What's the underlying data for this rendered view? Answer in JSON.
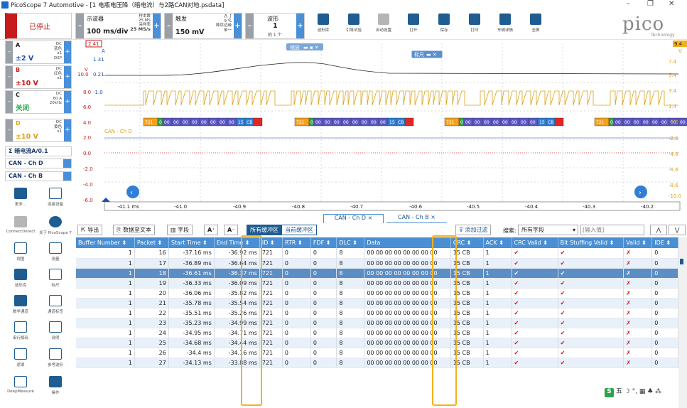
{
  "window": {
    "title": "PicoScope 7 Automotive - [1 电瓶电压降（暗电流）与2路CAN对地.psdata]",
    "minimize": "–",
    "restore": "❐",
    "close": "✕"
  },
  "toolbar": {
    "stop_label": "已停止",
    "scope_label": "示波器",
    "timebase": "100 ms/div",
    "samples_label": "样本数",
    "samples_value": "25 MS",
    "rate_label": "采样率",
    "rate_value": "25 MS/s",
    "trigger_label": "触发",
    "trigger_level": "150 mV",
    "trigger_pct": "9 %",
    "trigger_edge_label": "降序边缘",
    "trigger_mode": "单一",
    "waveform_label": "波形",
    "waveform_num": "1",
    "waveform_of": "的 1 个",
    "icons": [
      {
        "label": "波形库",
        "icon": "stack-icon"
      },
      {
        "label": "引导试验",
        "icon": "car-icon"
      },
      {
        "label": "自动设置",
        "icon": "wand-icon"
      },
      {
        "label": "打开",
        "icon": "folder-icon"
      },
      {
        "label": "保存",
        "icon": "save-icon"
      },
      {
        "label": "打印",
        "icon": "printer-icon"
      },
      {
        "label": "车辆详情",
        "icon": "clipboard-icon"
      },
      {
        "label": "全屏",
        "icon": "fullscreen-icon"
      }
    ],
    "brand": "pico",
    "brand_sub": "Technology"
  },
  "channels": [
    {
      "name": "A",
      "info1": "DC",
      "info2": "蓝色",
      "info3": "x1",
      "info4": "DSP",
      "range": "±2 V",
      "color": "#1f4fb0"
    },
    {
      "name": "B",
      "info1": "DC",
      "info2": "红色",
      "info3": "x1",
      "info4": "",
      "range": "±10 V",
      "color": "#c71b1b"
    },
    {
      "name": "C",
      "info1": "DC",
      "info2": "60 A",
      "info3": "20kHz",
      "info4": "",
      "range": "关闭",
      "color": "#2aa44a"
    },
    {
      "name": "D",
      "info1": "DC",
      "info2": "黄色",
      "info3": "x1",
      "info4": "",
      "range": "±10 V",
      "color": "#d9a21b"
    }
  ],
  "side_buttons": {
    "math": "Σ 暗电流A/0.1",
    "can_d": "CAN - Ch D",
    "can_b": "CAN - Ch B"
  },
  "tools": [
    {
      "label": "更多...",
      "icon": "grid-icon"
    },
    {
      "label": "连接设备",
      "icon": "usb-icon"
    },
    {
      "label": "ConnectDetect",
      "icon": "ab-icon"
    },
    {
      "label": "关于 PicoScope 7",
      "icon": "info-icon"
    },
    {
      "label": "视图",
      "icon": "view-icon"
    },
    {
      "label": "测量",
      "icon": "measure-icon"
    },
    {
      "label": "波形库",
      "icon": "library-icon"
    },
    {
      "label": "标尺",
      "icon": "ruler-icon"
    },
    {
      "label": "数学通道",
      "icon": "sigma-icon"
    },
    {
      "label": "通道标签",
      "icon": "abcd-icon"
    },
    {
      "label": "串行解码",
      "icon": "serial-icon"
    },
    {
      "label": "说明",
      "icon": "note-icon"
    },
    {
      "label": "遮罩",
      "icon": "mask-icon"
    },
    {
      "label": "参考波形",
      "icon": "reference-icon"
    },
    {
      "label": "DeepMeasure",
      "icon": "deepmeasure-icon"
    },
    {
      "label": "操作",
      "icon": "clapper-icon"
    }
  ],
  "scope": {
    "zoom_badge": "缩放",
    "ruler_badge": "标尺",
    "left_ruler": "2.41",
    "right_ruler": "9.4",
    "label_a": "A",
    "label_v_left": "V",
    "label_v_right": "V",
    "ch_d_label": "CAN - Ch D",
    "y_left": [
      "1.31",
      "0.21",
      "-1.0",
      "8.0",
      "6.0",
      "4.0",
      "2.0",
      "0.0",
      "-2.0",
      "-4.0",
      "-6.0"
    ],
    "y_left_extra": "10.0",
    "y_right": [
      "7.4",
      "5.4",
      "3.4",
      "1.4",
      "-0.6",
      "-2.6",
      "-4.6",
      "-6.6",
      "-8.6",
      "-10.0"
    ],
    "x_ticks": [
      "-41.1 ms",
      "-41.0",
      "-40.9",
      "-40.8",
      "-40.7",
      "-40.6",
      "-40.5",
      "-40.4",
      "-40.3",
      "-40.2"
    ],
    "frame_bytes": [
      "721",
      "0",
      "00",
      "00",
      "00",
      "00",
      "00",
      "00",
      "00",
      "00",
      "15",
      "CB"
    ]
  },
  "tabs": {
    "can_d": "CAN - Ch D",
    "can_b": "CAN - Ch B",
    "close": "×"
  },
  "actions": {
    "export": "导出",
    "data_to_text": "数据至文本",
    "fields": "字段",
    "font_up": "A",
    "font_down": "A",
    "all_buffers": "所有缓冲区",
    "current_buffer": "当前缓冲区",
    "add_filter": "添加过滤",
    "search_label": "搜索:",
    "search_field": "所有字段",
    "search_placeholder": "[输入值]"
  },
  "table": {
    "headers": [
      "Buffer Number ⬍",
      "Packet ⬍",
      "Start Time ⬍",
      "End Time ⬍",
      "ID ⬍",
      "RTR ⬍",
      "FDF ⬍",
      "DLC ⬍",
      "Data",
      "CRC ⬍",
      "ACK ⬍",
      "CRC Valid ⬍",
      "Bit Stuffing Valid ⬍",
      "Valid ⬍",
      "IDE ⬍"
    ],
    "rows": [
      [
        "1",
        "16",
        "-37.16 ms",
        "-36.92 ms",
        "721",
        "0",
        "0",
        "8",
        "00 00 00 00 00 00 00 00",
        "15 CB",
        "1",
        "✔",
        "✔",
        "✗",
        "0"
      ],
      [
        "1",
        "17",
        "-36.89 ms",
        "-36.64 ms",
        "721",
        "0",
        "0",
        "8",
        "00 00 00 00 00 00 00 00",
        "15 CB",
        "1",
        "✔",
        "✔",
        "✗",
        "0"
      ],
      [
        "1",
        "18",
        "-36.61 ms",
        "-36.37 ms",
        "721",
        "0",
        "0",
        "8",
        "00 00 00 00 00 00 00 00",
        "15 CB",
        "1",
        "✔",
        "✔",
        "✗",
        "0"
      ],
      [
        "1",
        "19",
        "-36.33 ms",
        "-36.09 ms",
        "721",
        "0",
        "0",
        "8",
        "00 00 00 00 00 00 00 00",
        "15 CB",
        "1",
        "✔",
        "✔",
        "✗",
        "0"
      ],
      [
        "1",
        "20",
        "-36.06 ms",
        "-35.82 ms",
        "721",
        "0",
        "0",
        "8",
        "00 00 00 00 00 00 00 00",
        "15 CB",
        "1",
        "✔",
        "✔",
        "✗",
        "0"
      ],
      [
        "1",
        "21",
        "-35.78 ms",
        "-35.54 ms",
        "721",
        "0",
        "0",
        "8",
        "00 00 00 00 00 00 00 00",
        "15 CB",
        "1",
        "✔",
        "✔",
        "✗",
        "0"
      ],
      [
        "1",
        "22",
        "-35.51 ms",
        "-35.26 ms",
        "721",
        "0",
        "0",
        "8",
        "00 00 00 00 00 00 00 00",
        "15 CB",
        "1",
        "✔",
        "✔",
        "✗",
        "0"
      ],
      [
        "1",
        "23",
        "-35.23 ms",
        "-34.99 ms",
        "721",
        "0",
        "0",
        "8",
        "00 00 00 00 00 00 00 00",
        "15 CB",
        "1",
        "✔",
        "✔",
        "✗",
        "0"
      ],
      [
        "1",
        "24",
        "-34.95 ms",
        "-34.71 ms",
        "721",
        "0",
        "0",
        "8",
        "00 00 00 00 00 00 00 00",
        "15 CB",
        "1",
        "✔",
        "✔",
        "✗",
        "0"
      ],
      [
        "1",
        "25",
        "-34.68 ms",
        "-34.44 ms",
        "721",
        "0",
        "0",
        "8",
        "00 00 00 00 00 00 00 00",
        "15 CB",
        "1",
        "✔",
        "✔",
        "✗",
        "0"
      ],
      [
        "1",
        "26",
        "-34.4 ms",
        "-34.16 ms",
        "721",
        "0",
        "0",
        "8",
        "00 00 00 00 00 00 00 00",
        "15 CB",
        "1",
        "✔",
        "✔",
        "✗",
        "0"
      ],
      [
        "1",
        "27",
        "-34.13 ms",
        "-33.88 ms",
        "721",
        "0",
        "0",
        "8",
        "00 00 00 00 00 00 00 00",
        "15 CB",
        "1",
        "✔",
        "✔",
        "✗",
        "0"
      ]
    ],
    "selected_row": 2
  },
  "ime": {
    "badge": "S",
    "text": "五 ☽ °, ▦ ♣ ⁂"
  }
}
